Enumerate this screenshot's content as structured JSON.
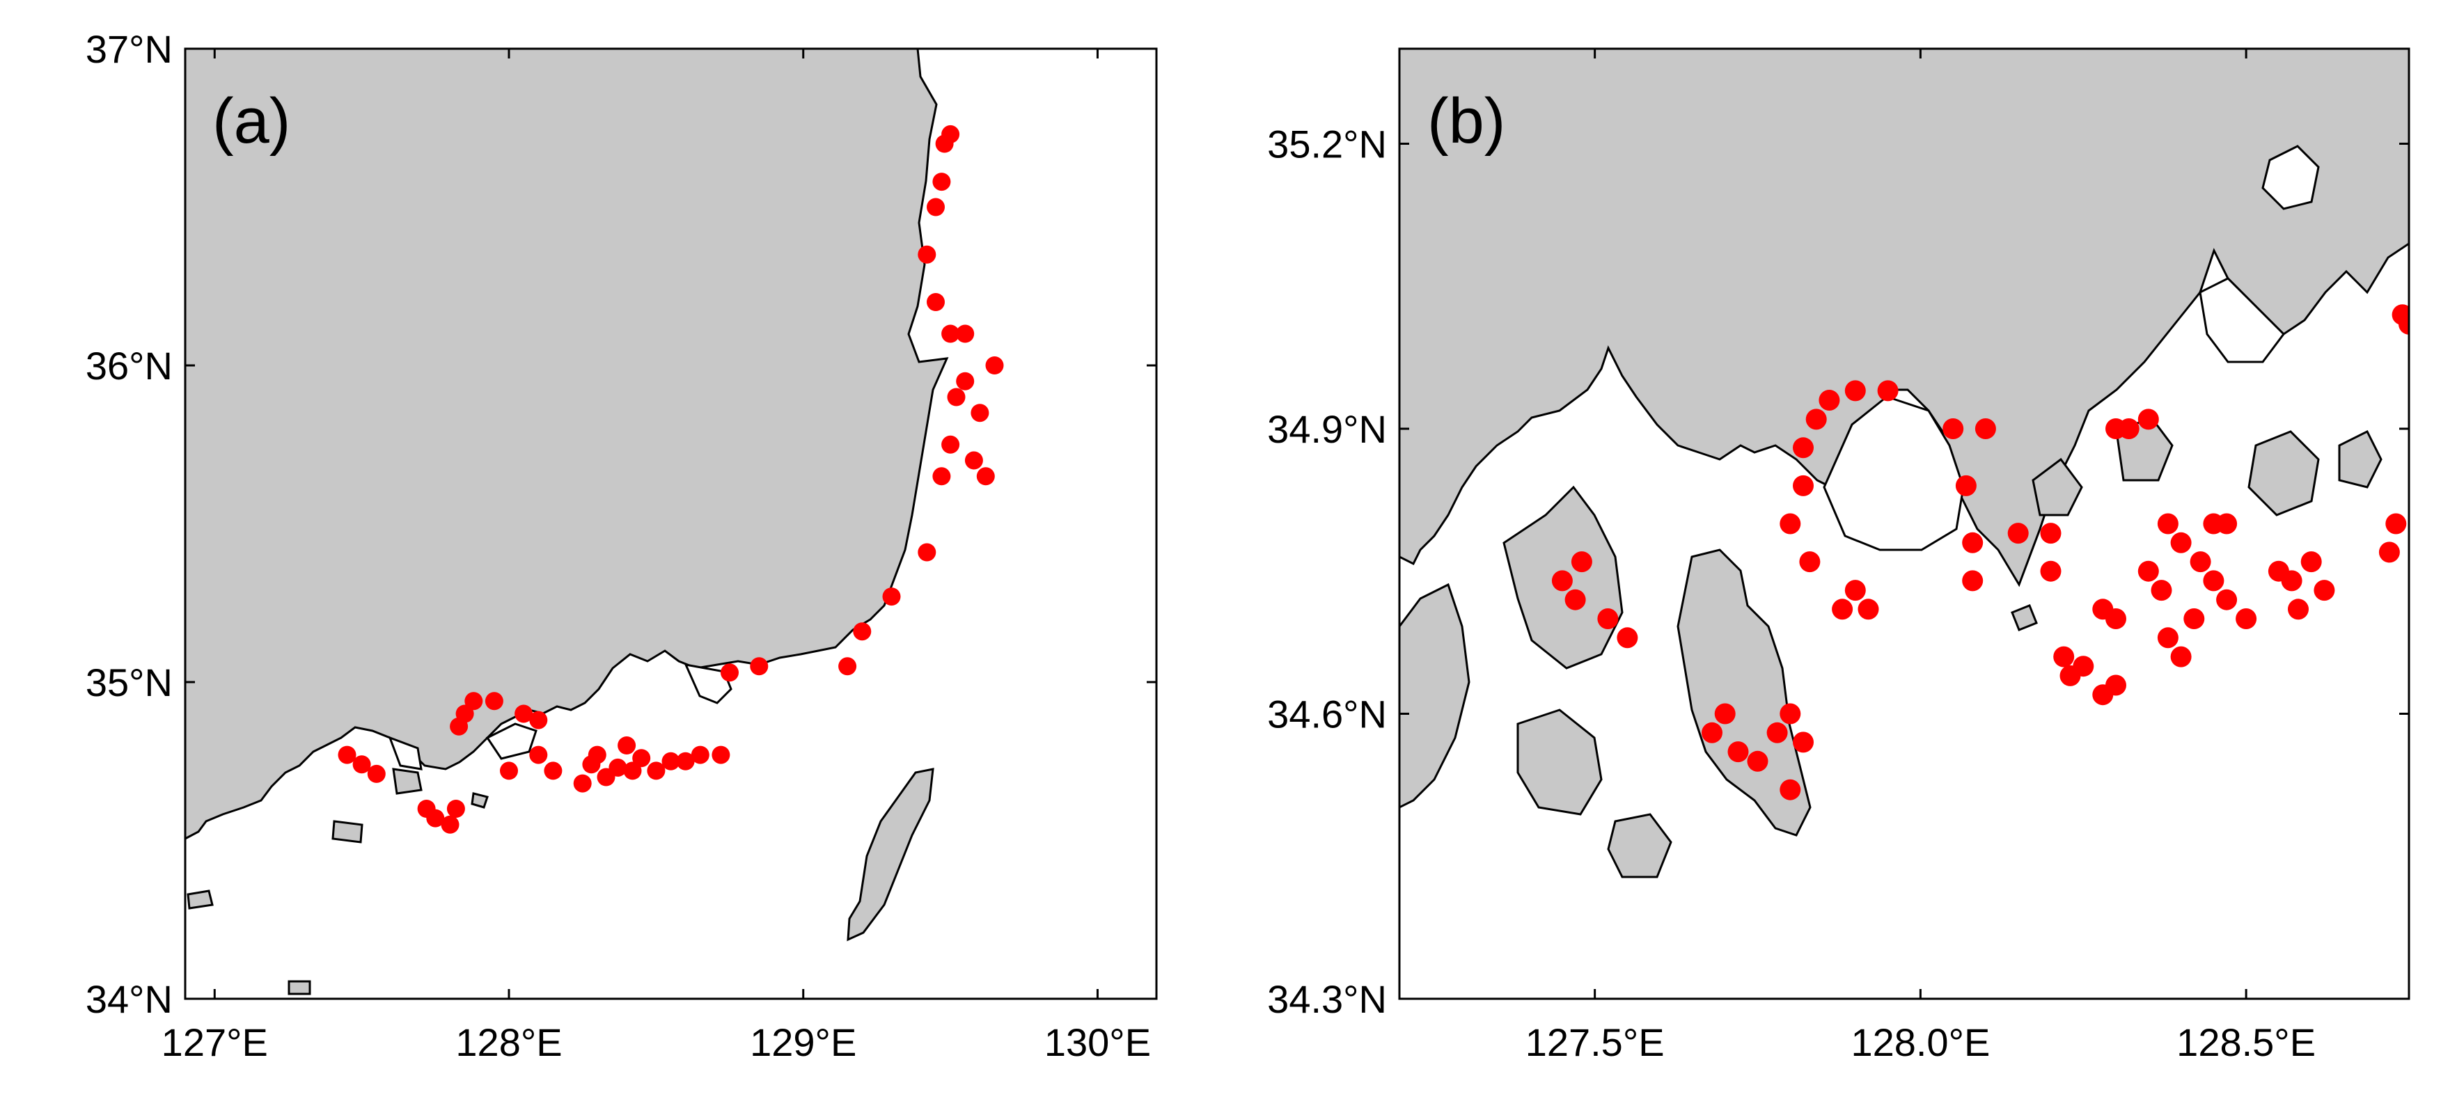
{
  "colors": {
    "land": "#c8c8c8",
    "sea": "#ffffff",
    "sites": "#ff0000",
    "coastline": "#000000"
  },
  "panels": [
    {
      "label": "(a)",
      "lon_range": [
        126.9,
        130.2
      ],
      "lat_range": [
        34.0,
        37.0
      ],
      "x_ticks": [
        {
          "value": 127.0,
          "label": "127°E"
        },
        {
          "value": 128.0,
          "label": "128°E"
        },
        {
          "value": 129.0,
          "label": "129°E"
        },
        {
          "value": 130.0,
          "label": "130°E"
        }
      ],
      "y_ticks": [
        {
          "value": 34.0,
          "label": "34°N"
        },
        {
          "value": 35.0,
          "label": "35°N"
        },
        {
          "value": 36.0,
          "label": "36°N"
        },
        {
          "value": 37.0,
          "label": "37°N"
        }
      ],
      "sites": [
        [
          127.45,
          34.77
        ],
        [
          127.5,
          34.74
        ],
        [
          127.55,
          34.71
        ],
        [
          127.72,
          34.6
        ],
        [
          127.75,
          34.57
        ],
        [
          127.8,
          34.55
        ],
        [
          127.82,
          34.6
        ],
        [
          127.83,
          34.86
        ],
        [
          127.85,
          34.9
        ],
        [
          127.88,
          34.94
        ],
        [
          127.95,
          34.94
        ],
        [
          128.0,
          34.72
        ],
        [
          128.05,
          34.9
        ],
        [
          128.1,
          34.88
        ],
        [
          128.1,
          34.77
        ],
        [
          128.15,
          34.72
        ],
        [
          128.25,
          34.68
        ],
        [
          128.28,
          34.74
        ],
        [
          128.3,
          34.77
        ],
        [
          128.33,
          34.7
        ],
        [
          128.37,
          34.73
        ],
        [
          128.4,
          34.8
        ],
        [
          128.42,
          34.72
        ],
        [
          128.45,
          34.76
        ],
        [
          128.5,
          34.72
        ],
        [
          128.55,
          34.75
        ],
        [
          128.6,
          34.75
        ],
        [
          128.65,
          34.77
        ],
        [
          128.72,
          34.77
        ],
        [
          128.75,
          35.03
        ],
        [
          128.85,
          35.05
        ],
        [
          129.2,
          35.16
        ],
        [
          129.15,
          35.05
        ],
        [
          129.3,
          35.27
        ],
        [
          129.42,
          35.41
        ],
        [
          129.47,
          35.65
        ],
        [
          129.5,
          35.75
        ],
        [
          129.52,
          35.9
        ],
        [
          129.55,
          35.95
        ],
        [
          129.58,
          35.7
        ],
        [
          129.6,
          35.85
        ],
        [
          129.65,
          36.0
        ],
        [
          129.62,
          35.65
        ],
        [
          129.55,
          36.1
        ],
        [
          129.5,
          36.1
        ],
        [
          129.45,
          36.2
        ],
        [
          129.42,
          36.35
        ],
        [
          129.45,
          36.5
        ],
        [
          129.47,
          36.58
        ],
        [
          129.48,
          36.7
        ],
        [
          129.5,
          36.73
        ]
      ]
    },
    {
      "label": "(b)",
      "lon_range": [
        127.2,
        128.75
      ],
      "lat_range": [
        34.3,
        35.3
      ],
      "x_ticks": [
        {
          "value": 127.5,
          "label": "127.5°E"
        },
        {
          "value": 128.0,
          "label": "128.0°E"
        },
        {
          "value": 128.5,
          "label": "128.5°E"
        }
      ],
      "y_ticks": [
        {
          "value": 34.3,
          "label": "34.3°N"
        },
        {
          "value": 34.6,
          "label": "34.6°N"
        },
        {
          "value": 34.9,
          "label": "34.9°N"
        },
        {
          "value": 35.2,
          "label": "35.2°N"
        }
      ],
      "sites": [
        [
          127.45,
          34.74
        ],
        [
          127.47,
          34.72
        ],
        [
          127.48,
          34.76
        ],
        [
          127.52,
          34.7
        ],
        [
          127.55,
          34.68
        ],
        [
          127.68,
          34.58
        ],
        [
          127.7,
          34.6
        ],
        [
          127.72,
          34.56
        ],
        [
          127.75,
          34.55
        ],
        [
          127.78,
          34.58
        ],
        [
          127.8,
          34.52
        ],
        [
          127.82,
          34.57
        ],
        [
          127.8,
          34.6
        ],
        [
          127.8,
          34.8
        ],
        [
          127.82,
          34.84
        ],
        [
          127.82,
          34.88
        ],
        [
          127.84,
          34.91
        ],
        [
          127.86,
          34.93
        ],
        [
          127.9,
          34.94
        ],
        [
          127.95,
          34.94
        ],
        [
          127.83,
          34.76
        ],
        [
          127.88,
          34.71
        ],
        [
          127.92,
          34.71
        ],
        [
          127.9,
          34.73
        ],
        [
          128.05,
          34.9
        ],
        [
          128.07,
          34.84
        ],
        [
          128.08,
          34.78
        ],
        [
          128.08,
          34.74
        ],
        [
          128.1,
          34.9
        ],
        [
          128.15,
          34.79
        ],
        [
          128.2,
          34.79
        ],
        [
          128.2,
          34.75
        ],
        [
          128.22,
          34.66
        ],
        [
          128.23,
          34.64
        ],
        [
          128.25,
          34.65
        ],
        [
          128.28,
          34.62
        ],
        [
          128.3,
          34.63
        ],
        [
          128.3,
          34.7
        ],
        [
          128.28,
          34.71
        ],
        [
          128.32,
          34.9
        ],
        [
          128.35,
          34.91
        ],
        [
          128.3,
          34.9
        ],
        [
          128.35,
          34.75
        ],
        [
          128.37,
          34.73
        ],
        [
          128.38,
          34.68
        ],
        [
          128.4,
          34.66
        ],
        [
          128.42,
          34.7
        ],
        [
          128.38,
          34.8
        ],
        [
          128.4,
          34.78
        ],
        [
          128.43,
          34.76
        ],
        [
          128.45,
          34.74
        ],
        [
          128.47,
          34.72
        ],
        [
          128.5,
          34.7
        ],
        [
          128.45,
          34.8
        ],
        [
          128.47,
          34.8
        ],
        [
          128.55,
          34.75
        ],
        [
          128.57,
          34.74
        ],
        [
          128.6,
          34.76
        ],
        [
          128.62,
          34.73
        ],
        [
          128.58,
          34.71
        ],
        [
          128.72,
          34.77
        ],
        [
          128.73,
          34.8
        ],
        [
          128.74,
          35.02
        ],
        [
          128.75,
          35.01
        ]
      ]
    }
  ]
}
